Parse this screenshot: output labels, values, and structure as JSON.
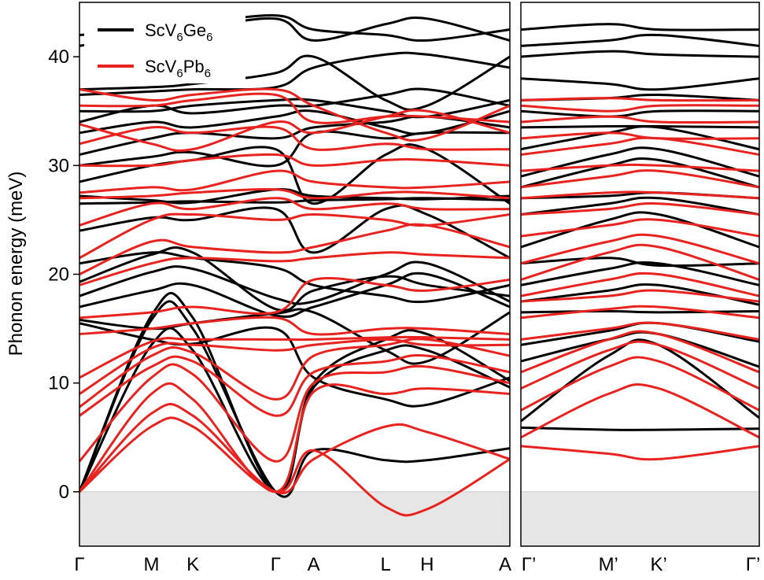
{
  "chart_data": {
    "type": "line",
    "title": "",
    "ylabel": "Phonon energy (meV)",
    "ylim": [
      -5,
      45
    ],
    "yticks": [
      0,
      10,
      20,
      30,
      40
    ],
    "grid": false,
    "negative_region_shading": "#e6e6e6",
    "legend": {
      "placement": "top-left",
      "entries": [
        {
          "name": "ScV6Ge6",
          "base": "ScV",
          "sub1": "6",
          "mid": "Ge",
          "sub2": "6",
          "color": "#000000"
        },
        {
          "name": "ScV6Pb6",
          "base": "ScV",
          "sub1": "6",
          "mid": "Pb",
          "sub2": "6",
          "color": "#e8231f"
        }
      ]
    },
    "panels": [
      {
        "name": "left",
        "path": [
          {
            "label": "Γ",
            "pos": 0.0
          },
          {
            "label": "M",
            "pos": 0.87
          },
          {
            "label": "K",
            "pos": 1.37
          },
          {
            "label": "Γ",
            "pos": 2.37
          },
          {
            "label": "A",
            "pos": 2.83
          },
          {
            "label": "L",
            "pos": 3.7
          },
          {
            "label": "H",
            "pos": 4.2
          },
          {
            "label": "A",
            "pos": 5.2
          }
        ],
        "xlim": [
          0,
          5.2
        ]
      },
      {
        "name": "right",
        "path": [
          {
            "label": "Γ’",
            "pos": 0.0
          },
          {
            "label": "M’",
            "pos": 0.87
          },
          {
            "label": "K’",
            "pos": 1.37
          },
          {
            "label": "Γ’",
            "pos": 2.37
          }
        ],
        "xlim": [
          0,
          2.37
        ]
      }
    ],
    "series": [
      {
        "name": "ScV6Ge6",
        "color": "#000000",
        "bands_left": [
          [
            0,
            15.8,
            15.0,
            0,
            3.8,
            2.9,
            2.9,
            4.0
          ],
          [
            0,
            13.5,
            13.0,
            0,
            9.6,
            13.0,
            13.0,
            9.6
          ],
          [
            0,
            16.2,
            16.0,
            0,
            10.0,
            14.0,
            14.5,
            10.2
          ],
          [
            15.5,
            14.0,
            13.6,
            15.0,
            10.5,
            8.5,
            8.0,
            10.5
          ],
          [
            15.8,
            15.0,
            15.5,
            16.4,
            16.5,
            13.0,
            12.0,
            16.5
          ],
          [
            17.0,
            18.5,
            19.0,
            16.2,
            17.0,
            19.0,
            20.0,
            17.0
          ],
          [
            18.0,
            20.2,
            20.5,
            17.8,
            17.5,
            20.0,
            21.0,
            17.5
          ],
          [
            19.3,
            21.8,
            22.0,
            16.8,
            18.5,
            19.8,
            19.0,
            18.0
          ],
          [
            21.0,
            22.0,
            21.5,
            20.6,
            19.0,
            18.0,
            17.5,
            19.0
          ],
          [
            24.0,
            25.2,
            25.0,
            26.0,
            22.0,
            26.0,
            25.5,
            21.5
          ],
          [
            26.5,
            26.6,
            26.7,
            26.6,
            26.8,
            26.9,
            27.0,
            26.8
          ],
          [
            27.2,
            26.8,
            26.6,
            27.8,
            27.2,
            27.0,
            26.9,
            27.2
          ],
          [
            28.5,
            30.0,
            30.5,
            31.5,
            26.5,
            31.0,
            31.5,
            26.5
          ],
          [
            30.0,
            30.8,
            31.2,
            30.0,
            33.0,
            32.5,
            33.0,
            33.0
          ],
          [
            31.0,
            32.5,
            33.0,
            32.5,
            33.5,
            34.0,
            34.5,
            33.5
          ],
          [
            33.0,
            34.0,
            33.5,
            34.5,
            35.0,
            33.5,
            33.0,
            35.0
          ],
          [
            34.0,
            35.5,
            34.8,
            35.5,
            35.5,
            36.5,
            37.0,
            35.5
          ],
          [
            35.0,
            35.0,
            35.5,
            36.0,
            36.0,
            35.0,
            34.5,
            36.0
          ],
          [
            36.5,
            36.8,
            37.0,
            37.2,
            39.0,
            40.2,
            40.2,
            39.0
          ],
          [
            37.0,
            37.2,
            37.5,
            38.5,
            40.0,
            36.0,
            35.5,
            40.0
          ],
          [
            41.0,
            42.0,
            42.5,
            43.5,
            41.5,
            43.0,
            43.5,
            41.5
          ],
          [
            42.0,
            42.5,
            43.0,
            43.8,
            42.5,
            42.0,
            41.5,
            42.5
          ]
        ],
        "bands_right": [
          [
            5.9,
            5.7,
            5.7,
            5.8
          ],
          [
            6.5,
            12.5,
            13.5,
            6.8
          ],
          [
            12.0,
            14.0,
            14.5,
            11.5
          ],
          [
            13.5,
            14.8,
            15.5,
            13.8
          ],
          [
            16.5,
            16.6,
            16.5,
            16.6
          ],
          [
            17.5,
            18.5,
            19.0,
            17.2
          ],
          [
            19.0,
            20.5,
            21.0,
            19.0
          ],
          [
            21.0,
            21.5,
            20.8,
            21.0
          ],
          [
            22.5,
            25.0,
            25.5,
            22.5
          ],
          [
            25.5,
            26.5,
            27.0,
            25.5
          ],
          [
            27.0,
            27.2,
            27.5,
            27.0
          ],
          [
            28.0,
            30.0,
            30.5,
            28.0
          ],
          [
            29.0,
            31.0,
            31.5,
            29.0
          ],
          [
            31.5,
            33.0,
            33.5,
            31.5
          ],
          [
            33.5,
            33.6,
            33.6,
            33.5
          ],
          [
            35.0,
            34.5,
            35.0,
            35.0
          ],
          [
            36.0,
            36.2,
            36.5,
            36.0
          ],
          [
            38.0,
            37.5,
            37.0,
            38.0
          ],
          [
            40.0,
            40.5,
            40.2,
            40.0
          ],
          [
            41.0,
            41.5,
            42.0,
            41.0
          ],
          [
            42.5,
            43.0,
            42.5,
            42.5
          ]
        ]
      },
      {
        "name": "ScV6Pb6",
        "color": "#e8231f",
        "bands_left": [
          [
            0,
            6.0,
            6.0,
            0,
            3.8,
            -1.4,
            -1.6,
            3.0
          ],
          [
            0,
            7.2,
            7.0,
            0,
            3.0,
            6.0,
            5.5,
            3.0
          ],
          [
            0,
            9.0,
            8.5,
            0,
            9.2,
            9.0,
            9.5,
            9.0
          ],
          [
            2.8,
            10.5,
            10.8,
            2.8,
            10.0,
            11.0,
            11.5,
            10.0
          ],
          [
            7.0,
            11.5,
            12.0,
            7.0,
            11.0,
            12.0,
            12.5,
            11.0
          ],
          [
            7.8,
            12.5,
            12.8,
            8.5,
            12.5,
            13.5,
            14.0,
            12.5
          ],
          [
            9.0,
            13.2,
            13.5,
            13.0,
            13.5,
            14.0,
            13.5,
            13.5
          ],
          [
            10.5,
            13.8,
            14.0,
            14.0,
            14.0,
            14.2,
            14.2,
            14.0
          ],
          [
            14.5,
            15.0,
            15.5,
            16.0,
            14.5,
            15.0,
            15.0,
            14.5
          ],
          [
            16.0,
            16.5,
            17.0,
            16.5,
            19.5,
            19.0,
            18.5,
            19.5
          ],
          [
            19.0,
            21.0,
            21.5,
            21.2,
            21.5,
            22.0,
            21.8,
            21.5
          ],
          [
            20.0,
            23.0,
            22.5,
            22.0,
            22.5,
            24.0,
            24.5,
            22.5
          ],
          [
            21.5,
            25.0,
            25.5,
            25.0,
            25.5,
            25.0,
            24.5,
            25.5
          ],
          [
            24.5,
            26.5,
            26.0,
            27.0,
            26.0,
            26.5,
            26.0,
            26.0
          ],
          [
            27.0,
            27.2,
            27.5,
            27.8,
            27.0,
            27.5,
            27.5,
            27.0
          ],
          [
            27.5,
            28.0,
            27.8,
            29.5,
            28.5,
            28.0,
            28.0,
            28.5
          ],
          [
            30.0,
            30.0,
            30.5,
            31.0,
            30.0,
            30.5,
            30.5,
            30.0
          ],
          [
            32.0,
            33.5,
            33.0,
            33.5,
            31.5,
            32.0,
            31.5,
            31.5
          ],
          [
            33.8,
            32.0,
            31.5,
            34.0,
            33.0,
            34.5,
            35.0,
            33.0
          ],
          [
            35.5,
            35.5,
            36.0,
            36.5,
            34.0,
            34.5,
            34.5,
            34.0
          ],
          [
            37.0,
            36.0,
            36.5,
            37.0,
            35.5,
            33.0,
            32.5,
            35.5
          ]
        ],
        "bands_right": [
          [
            4.2,
            3.5,
            3.0,
            4.2
          ],
          [
            5.0,
            9.0,
            9.5,
            5.0
          ],
          [
            7.5,
            11.5,
            12.0,
            7.5
          ],
          [
            9.5,
            13.0,
            13.5,
            9.5
          ],
          [
            11.0,
            14.0,
            14.5,
            11.0
          ],
          [
            14.0,
            15.0,
            15.5,
            14.0
          ],
          [
            16.0,
            16.8,
            17.0,
            16.0
          ],
          [
            17.5,
            18.0,
            18.5,
            17.5
          ],
          [
            18.0,
            19.5,
            20.0,
            18.0
          ],
          [
            19.5,
            22.0,
            22.5,
            19.5
          ],
          [
            21.0,
            23.0,
            23.5,
            21.0
          ],
          [
            23.5,
            24.5,
            25.0,
            23.5
          ],
          [
            25.5,
            26.0,
            26.5,
            25.5
          ],
          [
            27.0,
            27.5,
            27.5,
            27.0
          ],
          [
            28.0,
            29.0,
            29.5,
            28.0
          ],
          [
            29.5,
            30.0,
            30.0,
            29.5
          ],
          [
            31.0,
            32.0,
            32.5,
            31.0
          ],
          [
            32.5,
            33.0,
            32.5,
            32.5
          ],
          [
            34.0,
            34.5,
            34.0,
            34.0
          ],
          [
            35.5,
            35.0,
            35.5,
            35.5
          ],
          [
            36.0,
            36.2,
            36.0,
            36.0
          ]
        ]
      }
    ]
  }
}
